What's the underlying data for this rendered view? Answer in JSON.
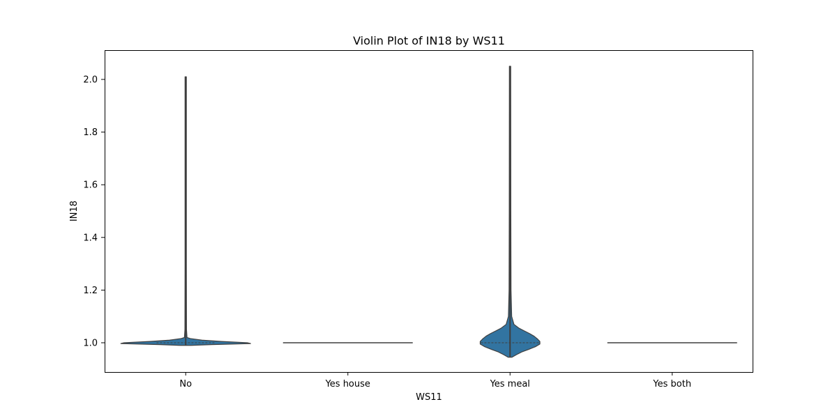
{
  "chart_data": {
    "type": "violin",
    "title": "Violin Plot of IN18 by WS11",
    "xlabel": "WS11",
    "ylabel": "IN18",
    "ylim": [
      0.9,
      2.1
    ],
    "yticks": [
      "1.0",
      "1.2",
      "1.4",
      "1.6",
      "1.8",
      "2.0"
    ],
    "ytick_values": [
      1.0,
      1.2,
      1.4,
      1.6,
      1.8,
      2.0
    ],
    "categories": [
      "No",
      "Yes house",
      "Yes meal",
      "Yes both"
    ],
    "fill_color": "#3274a1",
    "line_color": "#3f3f3f",
    "violins": [
      {
        "category": "No",
        "median": 1.0,
        "min": 0.99,
        "max": 2.01,
        "profile": [
          [
            0.99,
            0.08
          ],
          [
            0.993,
            0.4
          ],
          [
            0.997,
            1.0
          ],
          [
            1.0,
            0.95
          ],
          [
            1.005,
            0.55
          ],
          [
            1.01,
            0.25
          ],
          [
            1.016,
            0.07
          ],
          [
            1.02,
            0.02
          ],
          [
            1.05,
            0.012
          ],
          [
            1.3,
            0.01
          ],
          [
            1.7,
            0.01
          ],
          [
            2.01,
            0.01
          ]
        ]
      },
      {
        "category": "Yes house",
        "median": 1.0,
        "min": 1.0,
        "max": 1.0,
        "profile": []
      },
      {
        "category": "Yes meal",
        "median": 1.0,
        "min": 0.945,
        "max": 2.05,
        "profile": [
          [
            0.945,
            0.03
          ],
          [
            0.955,
            0.1
          ],
          [
            0.965,
            0.18
          ],
          [
            0.975,
            0.29
          ],
          [
            0.985,
            0.39
          ],
          [
            0.995,
            0.46
          ],
          [
            1.005,
            0.46
          ],
          [
            1.015,
            0.42
          ],
          [
            1.025,
            0.37
          ],
          [
            1.035,
            0.3
          ],
          [
            1.045,
            0.22
          ],
          [
            1.055,
            0.14
          ],
          [
            1.07,
            0.06
          ],
          [
            1.1,
            0.025
          ],
          [
            1.2,
            0.015
          ],
          [
            1.5,
            0.012
          ],
          [
            2.05,
            0.01
          ]
        ]
      },
      {
        "category": "Yes both",
        "median": 1.0,
        "min": 1.0,
        "max": 1.0,
        "profile": []
      }
    ]
  }
}
